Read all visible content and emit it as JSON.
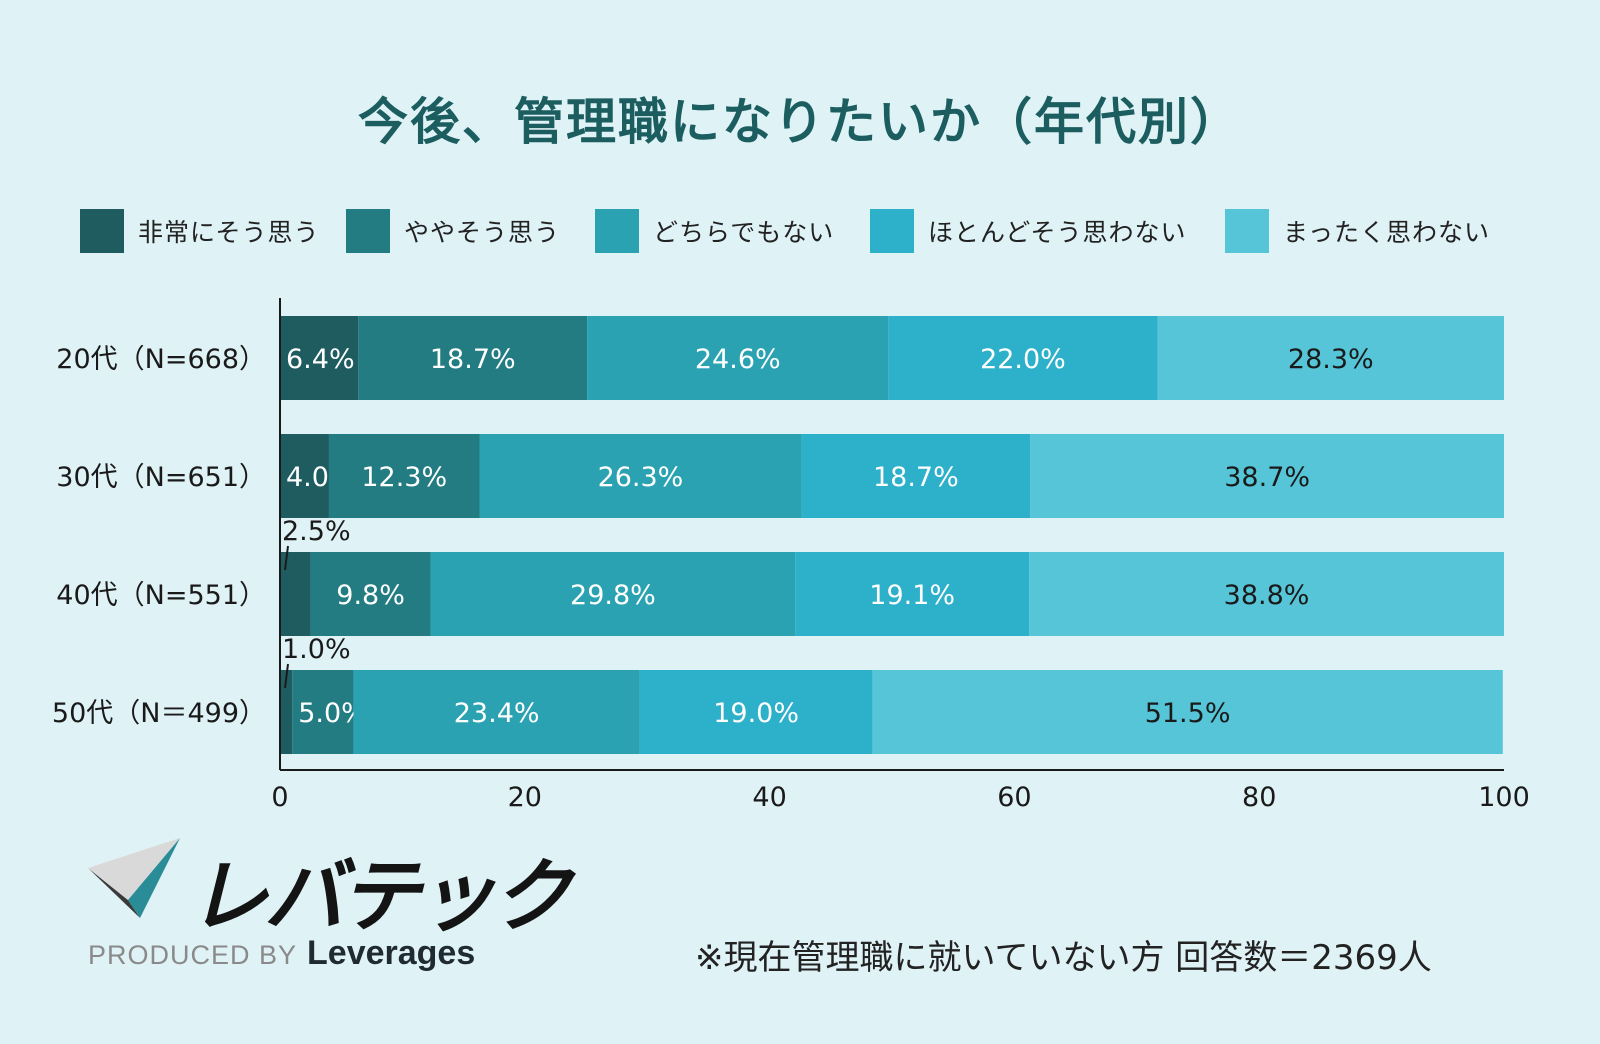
{
  "title": "今後、管理職になりたいか（年代別）",
  "legend": [
    {
      "label": "非常にそう思う",
      "color": "#1f5c5f"
    },
    {
      "label": "ややそう思う",
      "color": "#237c82"
    },
    {
      "label": "どちらでもない",
      "color": "#2aa2b2"
    },
    {
      "label": "ほとんどそう思わない",
      "color": "#2db0c9"
    },
    {
      "label": "まったく思わない",
      "color": "#56c5d8"
    }
  ],
  "chart_data": {
    "type": "bar",
    "orientation": "horizontal",
    "stacked": true,
    "categories": [
      "20代（N=668）",
      "30代（N=651）",
      "40代（N=551）",
      "50代（N＝499）"
    ],
    "series": [
      {
        "name": "非常にそう思う",
        "values": [
          6.4,
          4.0,
          2.5,
          1.0
        ],
        "labels": [
          "6.4%",
          "4.0%",
          "2.5%",
          "1.0%"
        ],
        "color": "#1f5c5f",
        "label_color": "#ffffff"
      },
      {
        "name": "ややそう思う",
        "values": [
          18.7,
          12.3,
          9.8,
          5.0
        ],
        "labels": [
          "18.7%",
          "12.3%",
          "9.8%",
          "5.0%"
        ],
        "color": "#237c82",
        "label_color": "#ffffff"
      },
      {
        "name": "どちらでもない",
        "values": [
          24.6,
          26.3,
          29.8,
          23.4
        ],
        "labels": [
          "24.6%",
          "26.3%",
          "29.8%",
          "23.4%"
        ],
        "color": "#2aa2b2",
        "label_color": "#ffffff"
      },
      {
        "name": "ほとんどそう思わない",
        "values": [
          22.0,
          18.7,
          19.1,
          19.0
        ],
        "labels": [
          "22.0%",
          "18.7%",
          "19.1%",
          "19.0%"
        ],
        "color": "#2db0c9",
        "label_color": "#ffffff"
      },
      {
        "name": "まったく思わない",
        "values": [
          28.3,
          38.7,
          38.8,
          51.5
        ],
        "labels": [
          "28.3%",
          "38.7%",
          "38.8%",
          "51.5%"
        ],
        "color": "#56c5d8",
        "label_color": "#1a1a1a"
      }
    ],
    "xlim": [
      0,
      100
    ],
    "xticks": [
      "0",
      "20",
      "40",
      "60",
      "80",
      "100"
    ],
    "grid": false,
    "legend_position": "top"
  },
  "footnote": "※現在管理職に就いていない方 回答数＝2369人",
  "logo": {
    "name": "レバテック",
    "produced_by": "PRODUCED BY",
    "company": "Leverages"
  }
}
